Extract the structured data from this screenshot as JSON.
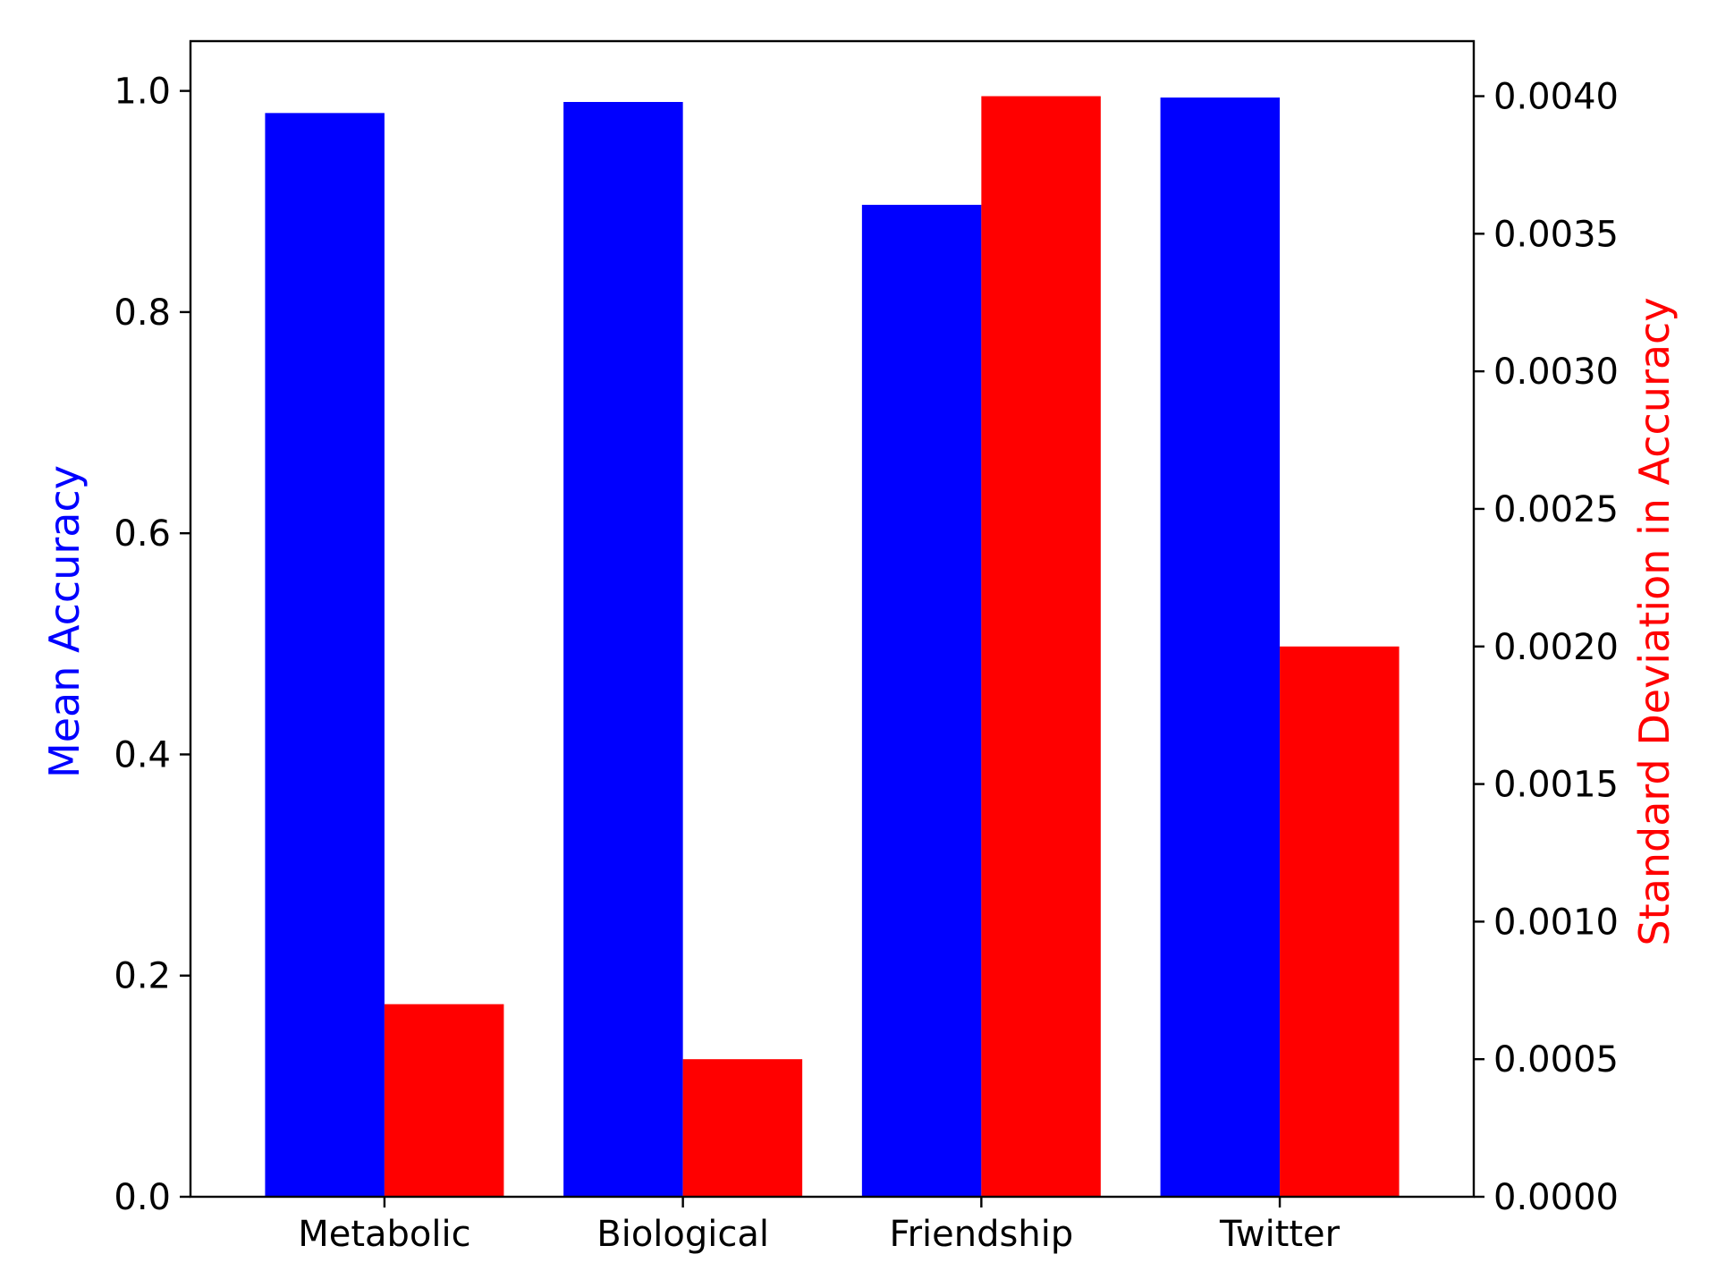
{
  "chart_data": {
    "type": "bar",
    "categories": [
      "Metabolic",
      "Biological",
      "Friendship",
      "Twitter"
    ],
    "series": [
      {
        "name": "",
        "axis": "left",
        "color": "#0000ff",
        "values": [
          0.98,
          0.99,
          0.897,
          0.994
        ]
      },
      {
        "name": "",
        "axis": "right",
        "color": "#ff0000",
        "values": [
          0.0007,
          0.0005,
          0.004,
          0.002
        ]
      }
    ],
    "ylabel_left": "Mean Accuracy",
    "ylabel_left_color": "#0000ff",
    "ylabel_right": "Standard Deviation in Accuracy",
    "ylabel_right_color": "#ff0000",
    "ylim_left": [
      0,
      1.045
    ],
    "ylim_right": [
      0,
      0.0042
    ],
    "yticks_left": [
      "0.0",
      "0.2",
      "0.4",
      "0.6",
      "0.8",
      "1.0"
    ],
    "yticks_right": [
      "0.0000",
      "0.0005",
      "0.0010",
      "0.0015",
      "0.0020",
      "0.0025",
      "0.0030",
      "0.0035",
      "0.0040"
    ],
    "grid": false
  }
}
